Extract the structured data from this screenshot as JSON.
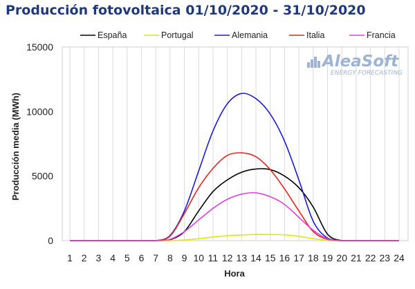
{
  "chart_data": {
    "type": "line",
    "title": "Producción fotovoltaica 01/10/2020 - 31/10/2020",
    "xlabel": "Hora",
    "ylabel": "Producción media (MWh)",
    "x": [
      1,
      2,
      3,
      4,
      5,
      6,
      7,
      8,
      9,
      10,
      11,
      12,
      13,
      14,
      15,
      16,
      17,
      18,
      19,
      20,
      21,
      22,
      23,
      24
    ],
    "xlim": [
      1,
      24
    ],
    "ylim": [
      0,
      15000
    ],
    "yticks": [
      0,
      5000,
      10000,
      15000
    ],
    "grid": "vertical",
    "legend_position": "top",
    "series": [
      {
        "name": "España",
        "color": "#000000",
        "values": [
          0,
          0,
          0,
          0,
          0,
          0,
          0,
          70,
          700,
          2300,
          3800,
          4700,
          5300,
          5550,
          5500,
          5000,
          4100,
          2600,
          500,
          0,
          0,
          0,
          0,
          0
        ]
      },
      {
        "name": "Portugal",
        "color": "#e6e600",
        "values": [
          0,
          0,
          0,
          0,
          0,
          0,
          0,
          0,
          50,
          150,
          280,
          380,
          440,
          470,
          470,
          450,
          330,
          150,
          30,
          0,
          0,
          0,
          0,
          0
        ]
      },
      {
        "name": "Alemania",
        "color": "#1a1adc",
        "values": [
          0,
          0,
          0,
          0,
          0,
          0,
          0,
          400,
          2300,
          5400,
          8500,
          10600,
          11400,
          11000,
          9800,
          7700,
          4700,
          1500,
          200,
          0,
          0,
          0,
          0,
          0
        ]
      },
      {
        "name": "Italia",
        "color": "#e8231b",
        "values": [
          0,
          0,
          0,
          0,
          0,
          0,
          0,
          350,
          2100,
          4100,
          5600,
          6600,
          6800,
          6500,
          5500,
          4000,
          2300,
          700,
          100,
          0,
          0,
          0,
          0,
          0
        ]
      },
      {
        "name": "Francia",
        "color": "#e040e0",
        "values": [
          0,
          0,
          0,
          0,
          0,
          0,
          0,
          100,
          700,
          1600,
          2500,
          3200,
          3600,
          3700,
          3400,
          2800,
          1800,
          800,
          150,
          0,
          0,
          0,
          0,
          0
        ]
      }
    ]
  },
  "logo": {
    "name": "AleaSoft",
    "tagline": "ENERGY FORECASTING",
    "icon": "bar-chart-icon"
  }
}
